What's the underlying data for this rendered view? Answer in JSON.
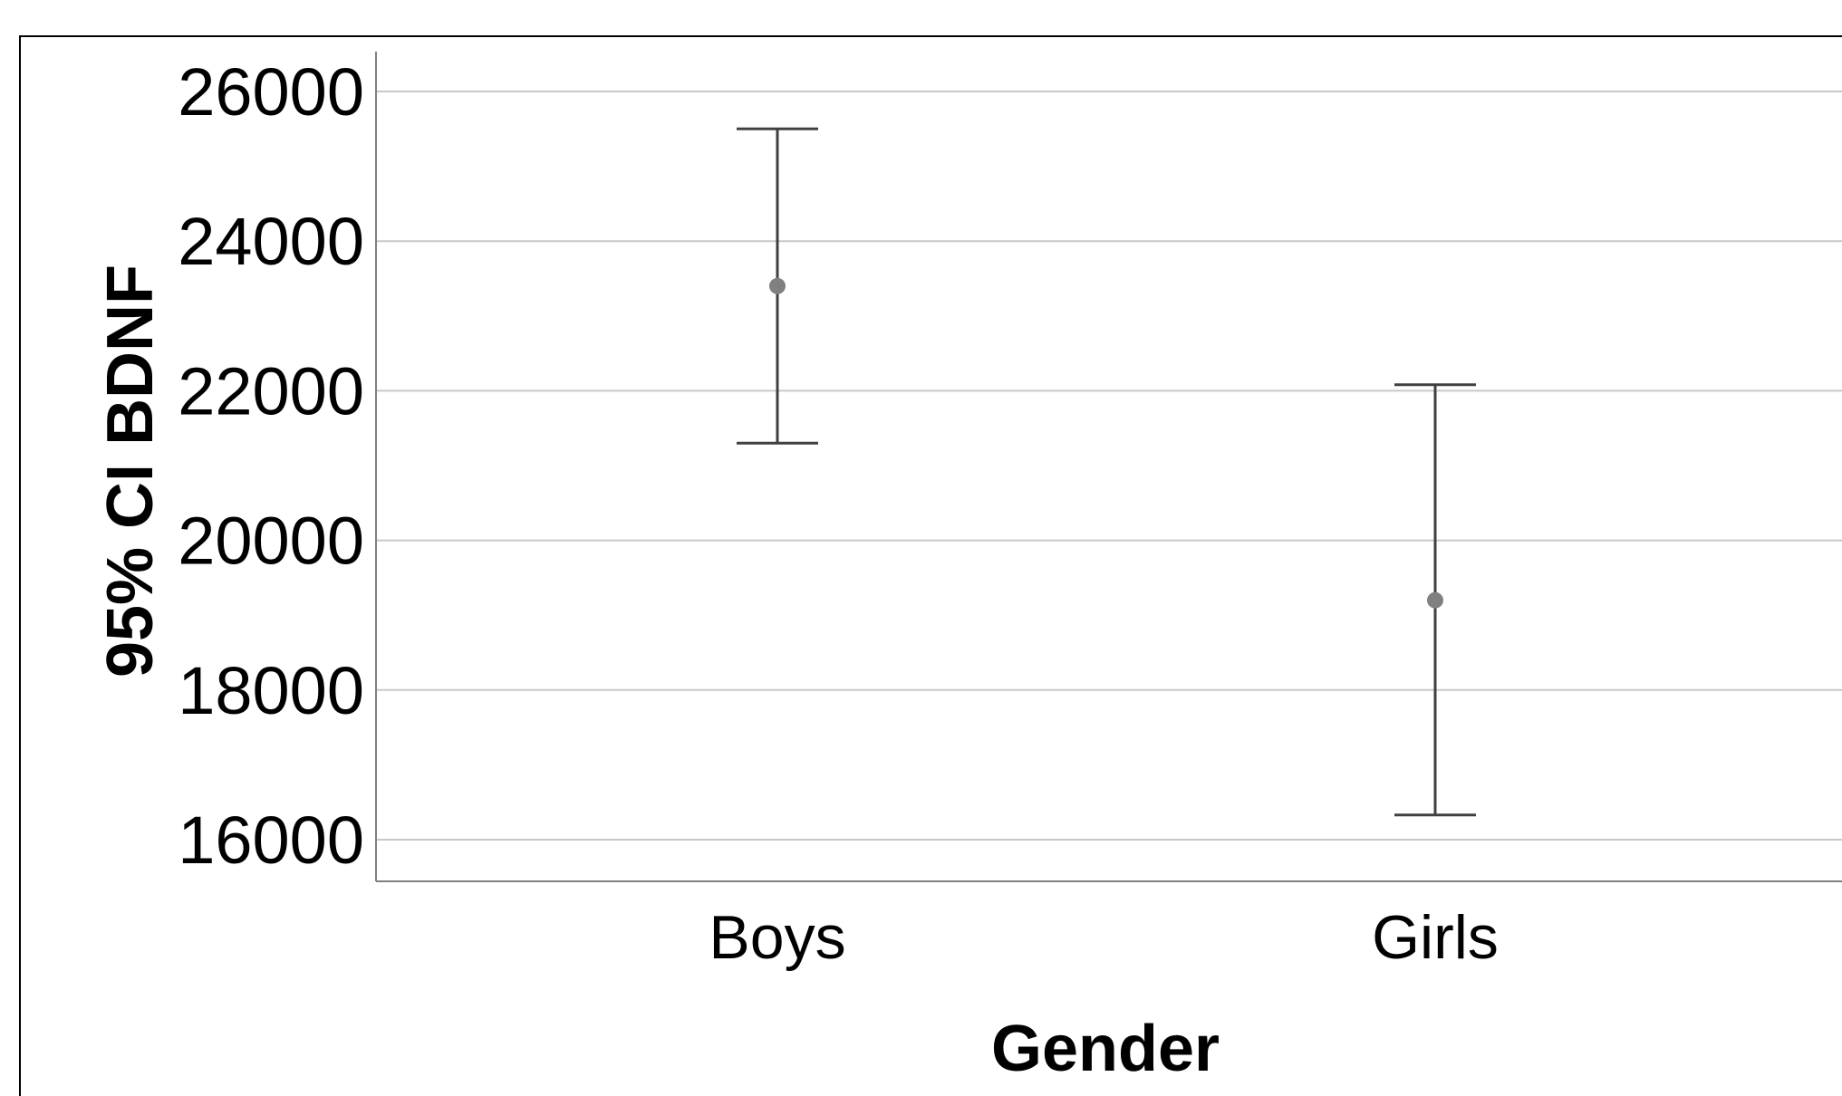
{
  "chart_data": {
    "type": "errorbar",
    "xlabel": "Gender",
    "ylabel": "95% CI BDNF",
    "categories": [
      "Boys",
      "Girls"
    ],
    "means": [
      23400,
      19200
    ],
    "ci_lower": [
      21300,
      16330
    ],
    "ci_upper": [
      25500,
      22080
    ],
    "ylim": [
      15450,
      26550
    ],
    "yticks": [
      16000,
      18000,
      20000,
      22000,
      24000,
      26000
    ],
    "ytick_labels": [
      "16000",
      "18000",
      "20000",
      "22000",
      "24000",
      "26000"
    ],
    "grid": true,
    "colors": {
      "point": "#808080",
      "errorbar": "#404040",
      "gridline": "#c8c8c8",
      "axis": "#808080",
      "frame": "#000000"
    }
  }
}
